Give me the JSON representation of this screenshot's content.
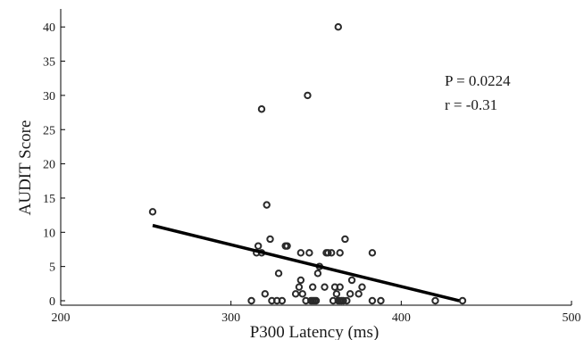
{
  "chart_data": {
    "type": "scatter",
    "xlabel": "P300 Latency (ms)",
    "ylabel": "AUDIT Score",
    "xlim": [
      200,
      500
    ],
    "ylim": [
      0,
      42
    ],
    "xticks": [
      "200",
      "300",
      "400",
      "500"
    ],
    "yticks": [
      "0",
      "5",
      "10",
      "15",
      "20",
      "25",
      "30",
      "35",
      "40"
    ],
    "annotations": [
      "P = 0.0224",
      "r = -0.31"
    ],
    "grid": false,
    "marker": "open-circle",
    "points": [
      {
        "x": 254,
        "y": 13
      },
      {
        "x": 312,
        "y": 0
      },
      {
        "x": 315,
        "y": 7
      },
      {
        "x": 316,
        "y": 8
      },
      {
        "x": 318,
        "y": 28
      },
      {
        "x": 318,
        "y": 7
      },
      {
        "x": 320,
        "y": 1
      },
      {
        "x": 321,
        "y": 14
      },
      {
        "x": 323,
        "y": 9
      },
      {
        "x": 324,
        "y": 0
      },
      {
        "x": 327,
        "y": 0
      },
      {
        "x": 328,
        "y": 4
      },
      {
        "x": 330,
        "y": 0
      },
      {
        "x": 332,
        "y": 8
      },
      {
        "x": 333,
        "y": 8
      },
      {
        "x": 338,
        "y": 1
      },
      {
        "x": 340,
        "y": 2
      },
      {
        "x": 341,
        "y": 3
      },
      {
        "x": 341,
        "y": 7
      },
      {
        "x": 342,
        "y": 1
      },
      {
        "x": 344,
        "y": 0
      },
      {
        "x": 345,
        "y": 30
      },
      {
        "x": 346,
        "y": 7
      },
      {
        "x": 347,
        "y": 0
      },
      {
        "x": 348,
        "y": 2
      },
      {
        "x": 348,
        "y": 0
      },
      {
        "x": 349,
        "y": 0
      },
      {
        "x": 350,
        "y": 0
      },
      {
        "x": 351,
        "y": 4
      },
      {
        "x": 352,
        "y": 5
      },
      {
        "x": 355,
        "y": 2
      },
      {
        "x": 356,
        "y": 7
      },
      {
        "x": 357,
        "y": 7
      },
      {
        "x": 359,
        "y": 7
      },
      {
        "x": 360,
        "y": 0
      },
      {
        "x": 361,
        "y": 2
      },
      {
        "x": 362,
        "y": 1
      },
      {
        "x": 363,
        "y": 0
      },
      {
        "x": 363,
        "y": 40
      },
      {
        "x": 364,
        "y": 0
      },
      {
        "x": 364,
        "y": 2
      },
      {
        "x": 364,
        "y": 7
      },
      {
        "x": 365,
        "y": 0
      },
      {
        "x": 366,
        "y": 0
      },
      {
        "x": 367,
        "y": 9
      },
      {
        "x": 368,
        "y": 0
      },
      {
        "x": 370,
        "y": 1
      },
      {
        "x": 371,
        "y": 3
      },
      {
        "x": 375,
        "y": 1
      },
      {
        "x": 377,
        "y": 2
      },
      {
        "x": 383,
        "y": 7
      },
      {
        "x": 383,
        "y": 0
      },
      {
        "x": 388,
        "y": 0
      },
      {
        "x": 420,
        "y": 0
      },
      {
        "x": 436,
        "y": 0
      }
    ],
    "fit_line": {
      "x": [
        254,
        434
      ],
      "y": [
        11,
        0
      ]
    },
    "colors": {
      "marker": "#2a2a2a",
      "fit_line": "#000000",
      "axes": "#000000",
      "text": "#1a1a1a"
    }
  }
}
